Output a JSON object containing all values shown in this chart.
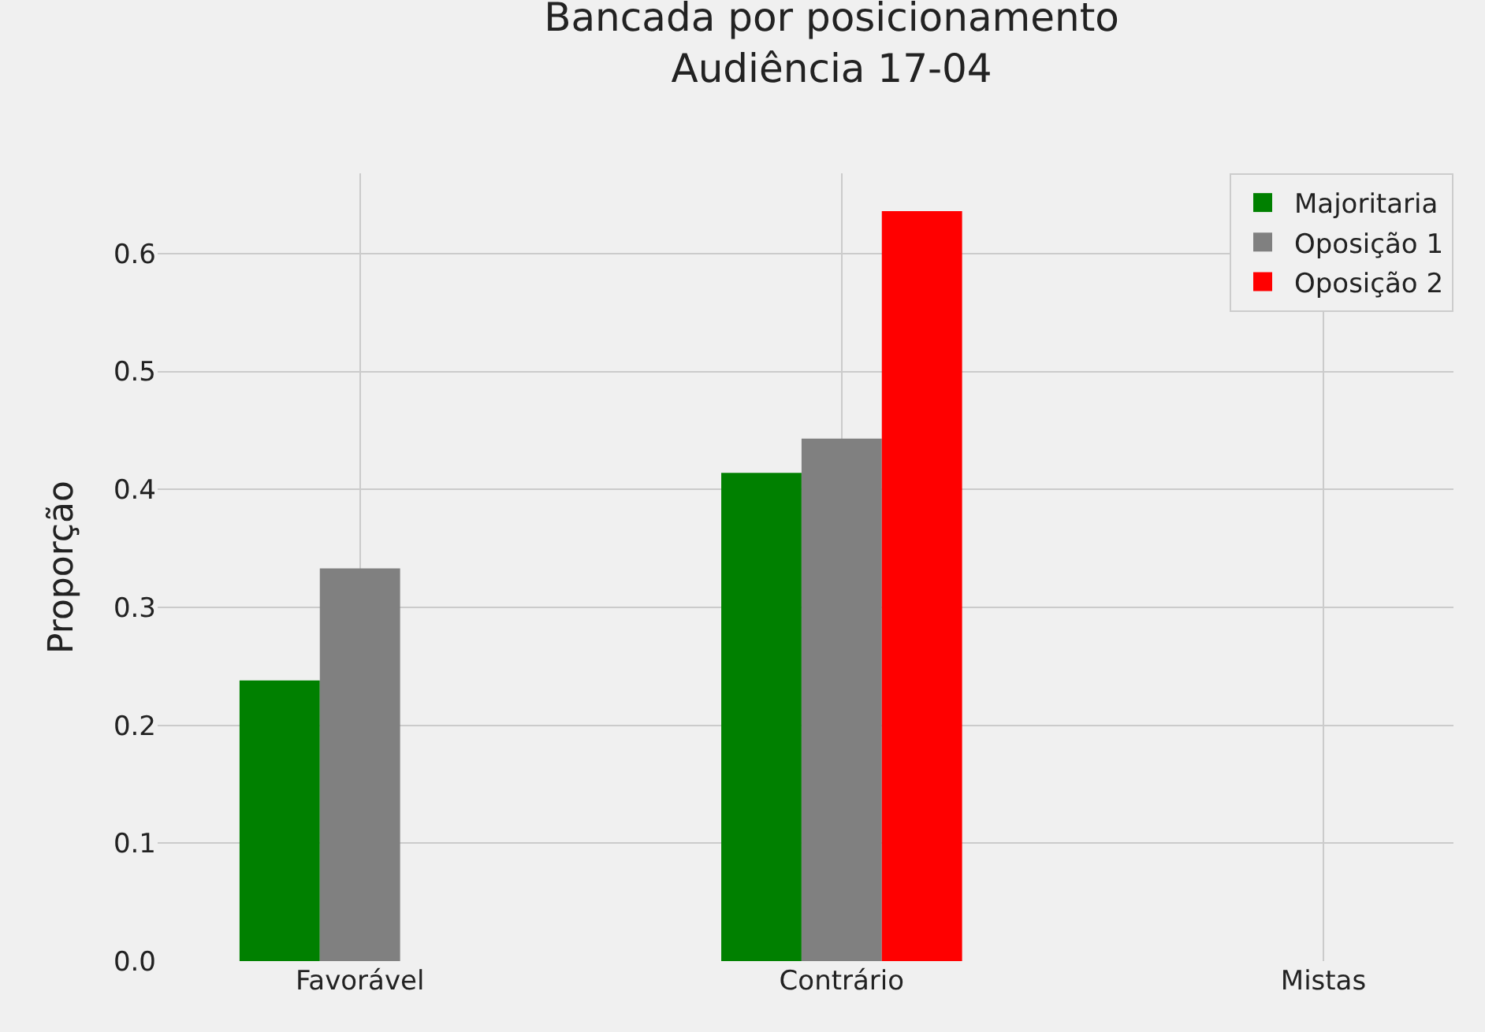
{
  "chart_data": {
    "type": "bar",
    "title": "Bancada por posicionamento\nAudiência 17-04",
    "ylabel": "Proporção",
    "categories": [
      "Favorável",
      "Contrário",
      "Mistas"
    ],
    "series": [
      {
        "name": "Majoritaria",
        "color": "#008000",
        "values": [
          0.238,
          0.414,
          0
        ]
      },
      {
        "name": "Oposição 1",
        "color": "#808080",
        "values": [
          0.333,
          0.443,
          0
        ]
      },
      {
        "name": "Oposição 2",
        "color": "#ff0000",
        "values": [
          0,
          0.636,
          0
        ]
      }
    ],
    "ylim": [
      0,
      0.668
    ],
    "yticks": [
      "0.0",
      0.1,
      0.2,
      0.3,
      0.4,
      0.5,
      0.6
    ],
    "grid": true,
    "legend": "top right"
  }
}
